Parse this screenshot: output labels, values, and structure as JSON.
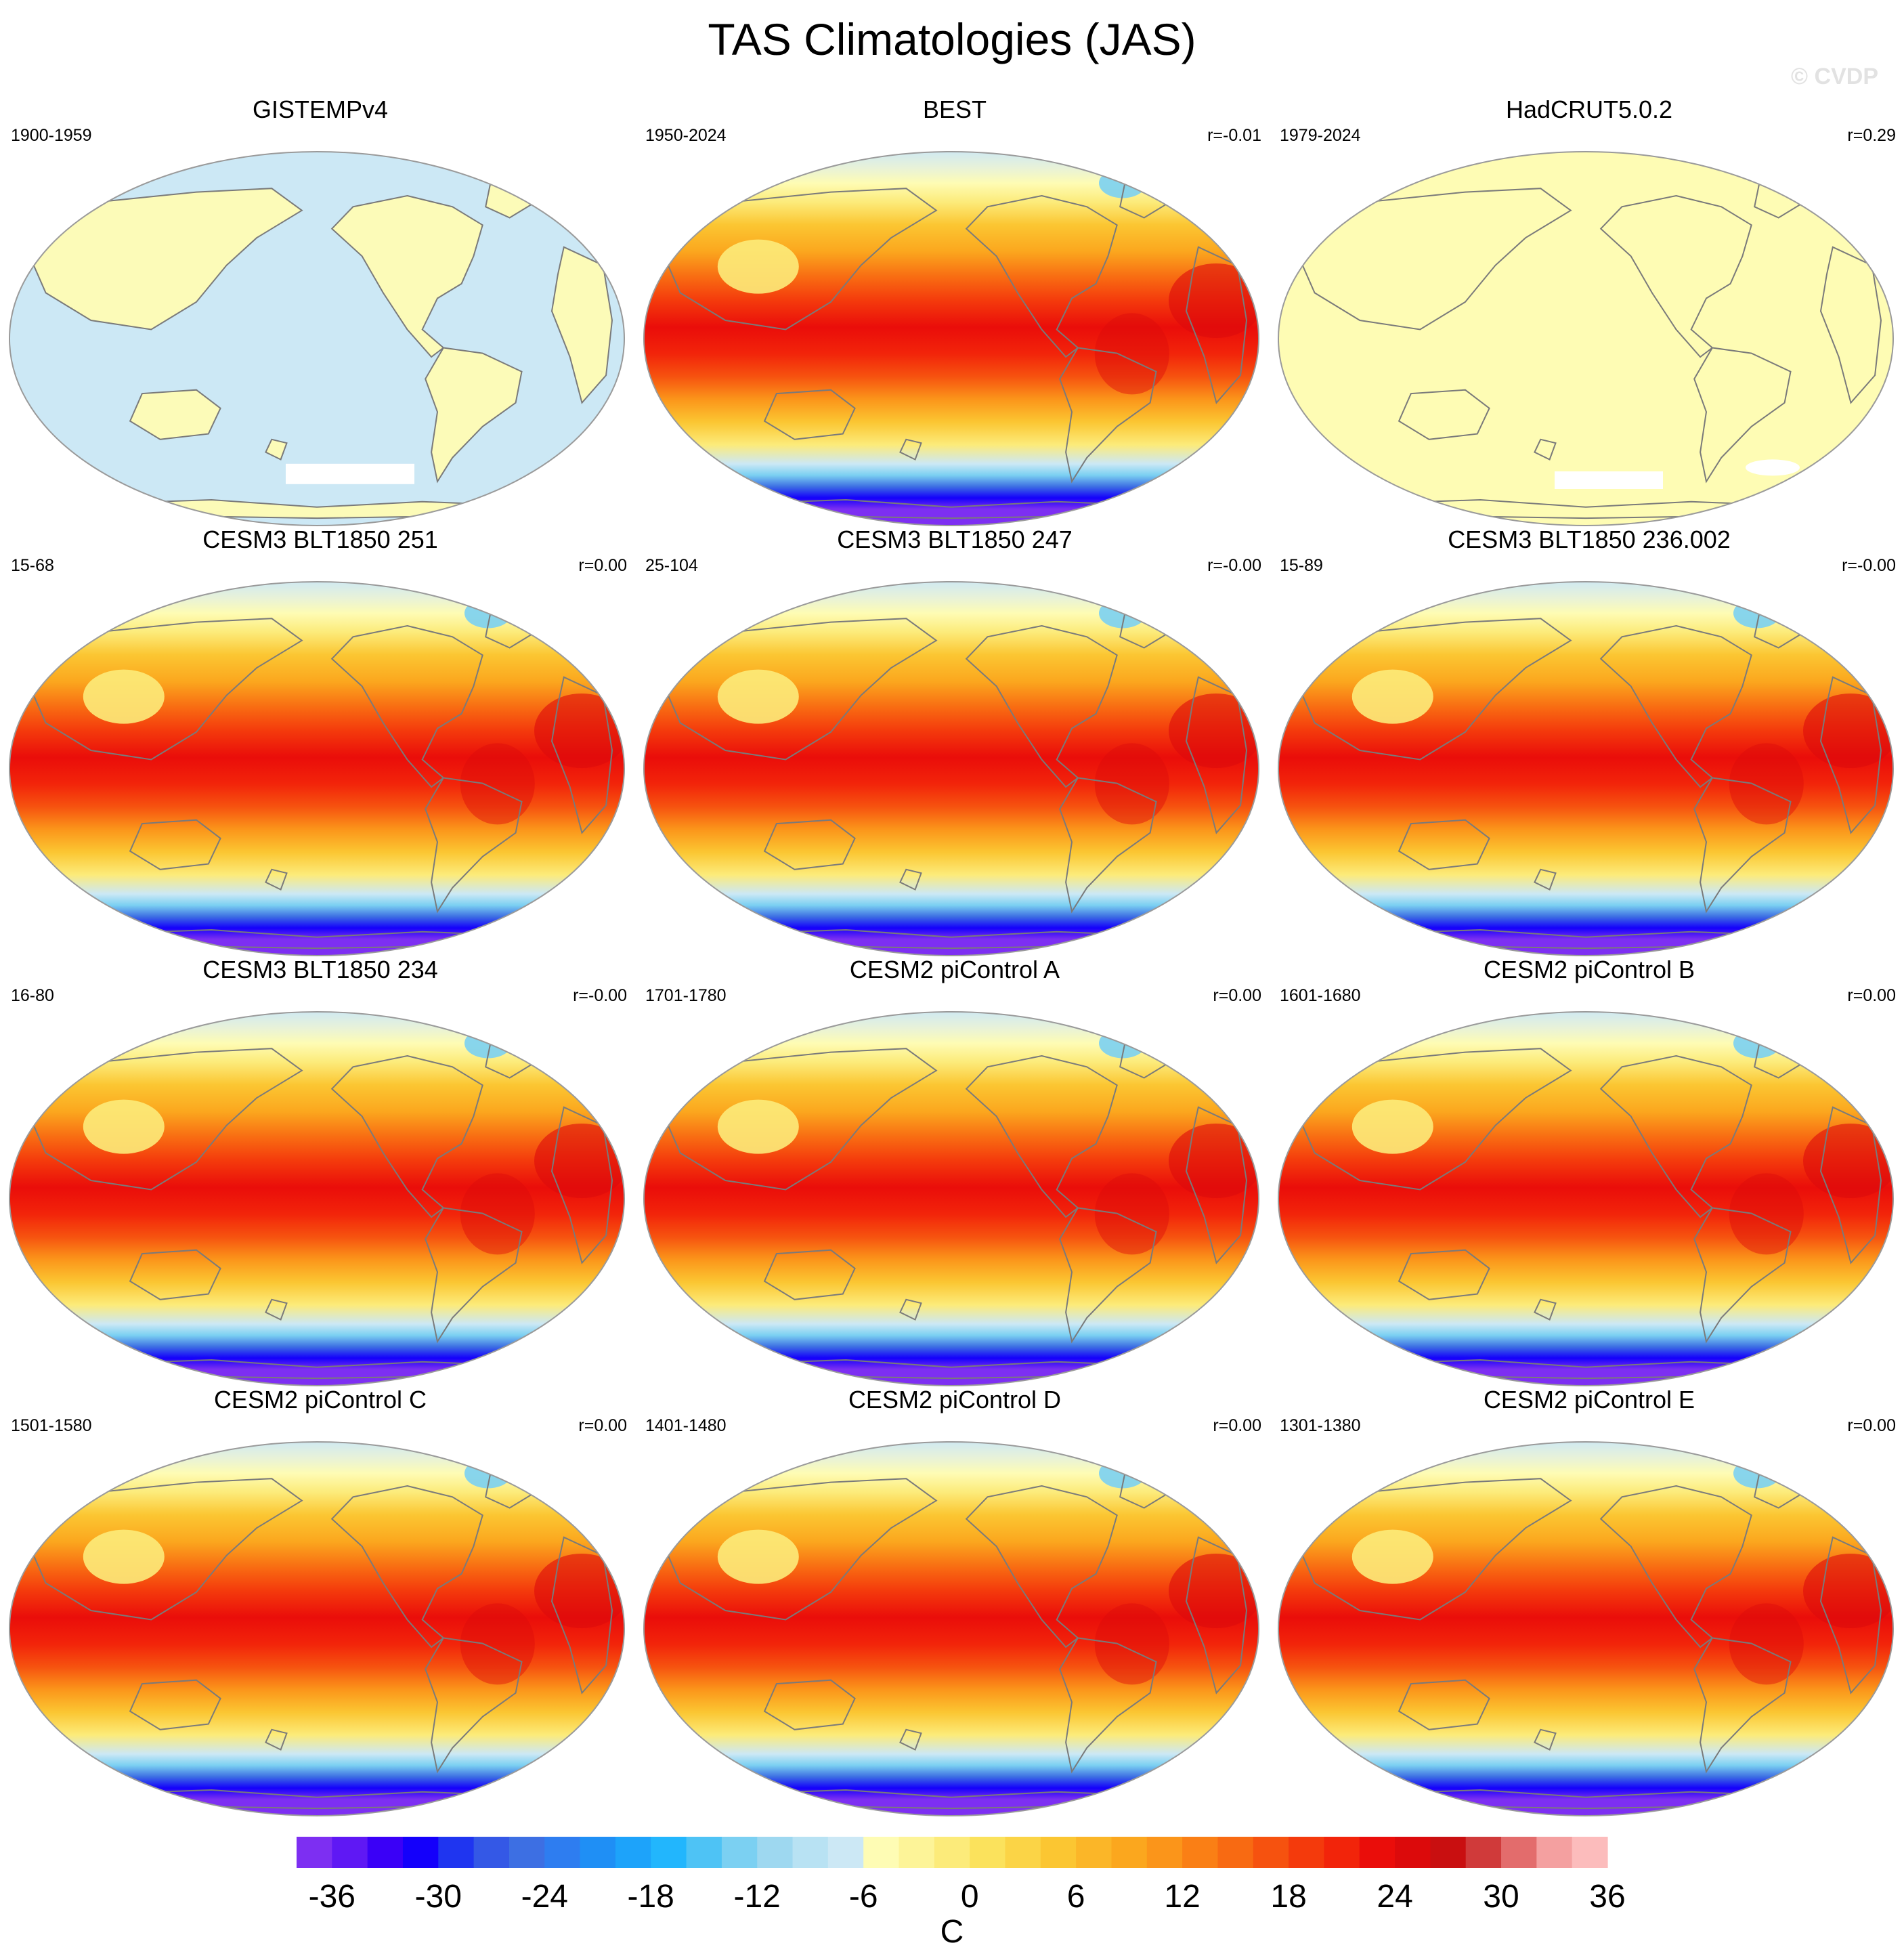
{
  "title": "TAS Climatologies (JAS)",
  "watermark": "© CVDP",
  "units": "C",
  "colorbar": {
    "colors": [
      "#7d2ff2",
      "#5f18f4",
      "#3a00f7",
      "#1400fb",
      "#1f35f0",
      "#3458e6",
      "#3d6fe3",
      "#2e7df0",
      "#1f8ff5",
      "#1da3fa",
      "#22b6fd",
      "#4ec3f5",
      "#7bd0f2",
      "#9ed8f0",
      "#b8e2f3",
      "#cce8f5",
      "#fefcb4",
      "#fdf498",
      "#fceb7a",
      "#fbe25c",
      "#fbd446",
      "#fbc632",
      "#fbb628",
      "#fba71e",
      "#fb951a",
      "#fa7f15",
      "#f86a12",
      "#f6520f",
      "#f43a0c",
      "#f2240a",
      "#ea0d0a",
      "#dc0a0b",
      "#c90f10",
      "#d03a3a",
      "#e36c6c",
      "#f4a0a0",
      "#fcbcbc"
    ],
    "ticks": [
      "-36",
      "-30",
      "-24",
      "-18",
      "-12",
      "-6",
      "0",
      "6",
      "12",
      "18",
      "24",
      "30",
      "36"
    ]
  },
  "panels": [
    {
      "title": "GISTEMPv4",
      "period": "1900-1959",
      "r": "",
      "style": "gistemp"
    },
    {
      "title": "BEST",
      "period": "1950-2024",
      "r": "r=-0.01",
      "style": "full"
    },
    {
      "title": "HadCRUT5.0.2",
      "period": "1979-2024",
      "r": "r=0.29",
      "style": "hadcrut"
    },
    {
      "title": "CESM3 BLT1850 251",
      "period": "15-68",
      "r": "r=0.00",
      "style": "full"
    },
    {
      "title": "CESM3 BLT1850 247",
      "period": "25-104",
      "r": "r=-0.00",
      "style": "full"
    },
    {
      "title": "CESM3 BLT1850 236.002",
      "period": "15-89",
      "r": "r=-0.00",
      "style": "full"
    },
    {
      "title": "CESM3 BLT1850 234",
      "period": "16-80",
      "r": "r=-0.00",
      "style": "full"
    },
    {
      "title": "CESM2 piControl A",
      "period": "1701-1780",
      "r": "r=0.00",
      "style": "full"
    },
    {
      "title": "CESM2 piControl B",
      "period": "1601-1680",
      "r": "r=0.00",
      "style": "full"
    },
    {
      "title": "CESM2 piControl C",
      "period": "1501-1580",
      "r": "r=0.00",
      "style": "full"
    },
    {
      "title": "CESM2 piControl D",
      "period": "1401-1480",
      "r": "r=0.00",
      "style": "full"
    },
    {
      "title": "CESM2 piControl E",
      "period": "1301-1380",
      "r": "r=0.00",
      "style": "full"
    }
  ]
}
